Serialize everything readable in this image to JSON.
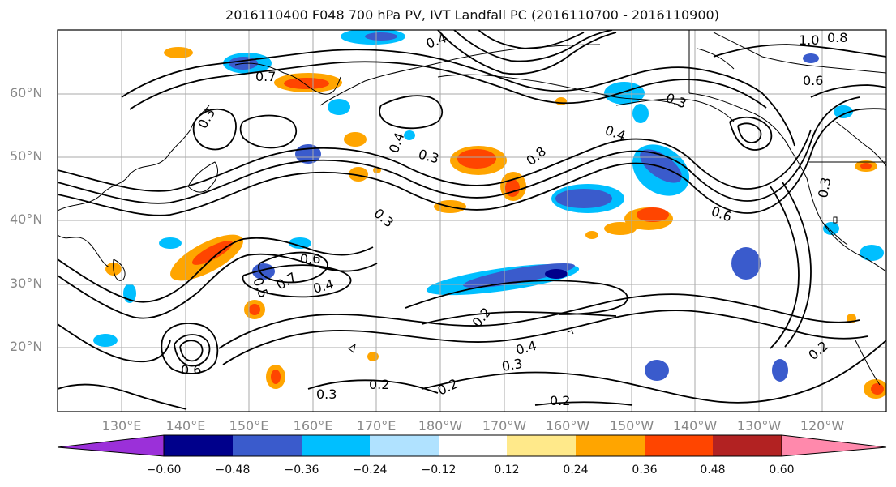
{
  "title": "2016110400 F048 700 hPa PV, IVT Landfall PC (2016110700 - 2016110900)",
  "map": {
    "lat_labels": [
      "60°N",
      "50°N",
      "40°N",
      "30°N",
      "20°N"
    ],
    "lon_labels": [
      "130°E",
      "140°E",
      "150°E",
      "160°E",
      "170°E",
      "180°W",
      "170°W",
      "160°W",
      "150°W",
      "140°W",
      "130°W",
      "120°W"
    ],
    "contour_labels": [
      "0.4",
      "0.7",
      "0.3",
      "1.0",
      "0.8",
      "0.6",
      "0.3",
      "0.4",
      "0.3",
      "0.8",
      "0.6",
      "0.4",
      "0.3",
      "0.6",
      "0.5",
      "0.7",
      "0.4",
      "0.2",
      "0.4",
      "0.3",
      "0.2",
      "0.3",
      "0.2",
      "0.2",
      "0.6",
      "0.3",
      "0.2"
    ],
    "colors": {
      "contour": "#000000",
      "grid": "#aaaaaa",
      "coast": "#000000"
    }
  },
  "colorbar": {
    "ticks": [
      "−0.60",
      "−0.48",
      "−0.36",
      "−0.24",
      "−0.12",
      "0.12",
      "0.24",
      "0.36",
      "0.48",
      "0.60"
    ],
    "segments": [
      "#9b30d9",
      "#00008b",
      "#3a5bcc",
      "#00bfff",
      "#b0e2ff",
      "#ffffff",
      "#ffe98a",
      "#ffa500",
      "#ff4500",
      "#b22222",
      "#ff89ac"
    ]
  }
}
